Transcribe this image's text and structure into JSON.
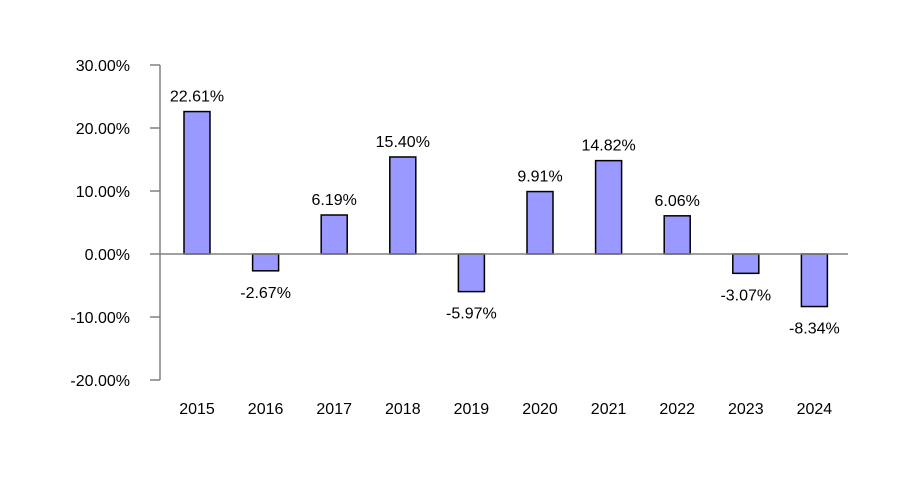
{
  "chart_data": {
    "type": "bar",
    "categories": [
      "2015",
      "2016",
      "2017",
      "2018",
      "2019",
      "2020",
      "2021",
      "2022",
      "2023",
      "2024"
    ],
    "values": [
      22.61,
      -2.67,
      6.19,
      15.4,
      -5.97,
      9.91,
      14.82,
      6.06,
      -3.07,
      -8.34
    ],
    "data_labels": [
      "22.61%",
      "-2.67%",
      "6.19%",
      "15.40%",
      "-5.97%",
      "9.91%",
      "14.82%",
      "6.06%",
      "-3.07%",
      "-8.34%"
    ],
    "y_ticks": [
      30,
      20,
      10,
      0,
      -10,
      -20
    ],
    "y_tick_labels": [
      "30.00%",
      "20.00%",
      "10.00%",
      "0.00%",
      "-10.00%",
      "-20.00%"
    ],
    "ylim": [
      -20,
      30
    ],
    "grid": false,
    "legend": "none",
    "colors": {
      "bar_fill": "#9999ff",
      "bar_stroke": "#000000",
      "axis": "#808080"
    }
  }
}
